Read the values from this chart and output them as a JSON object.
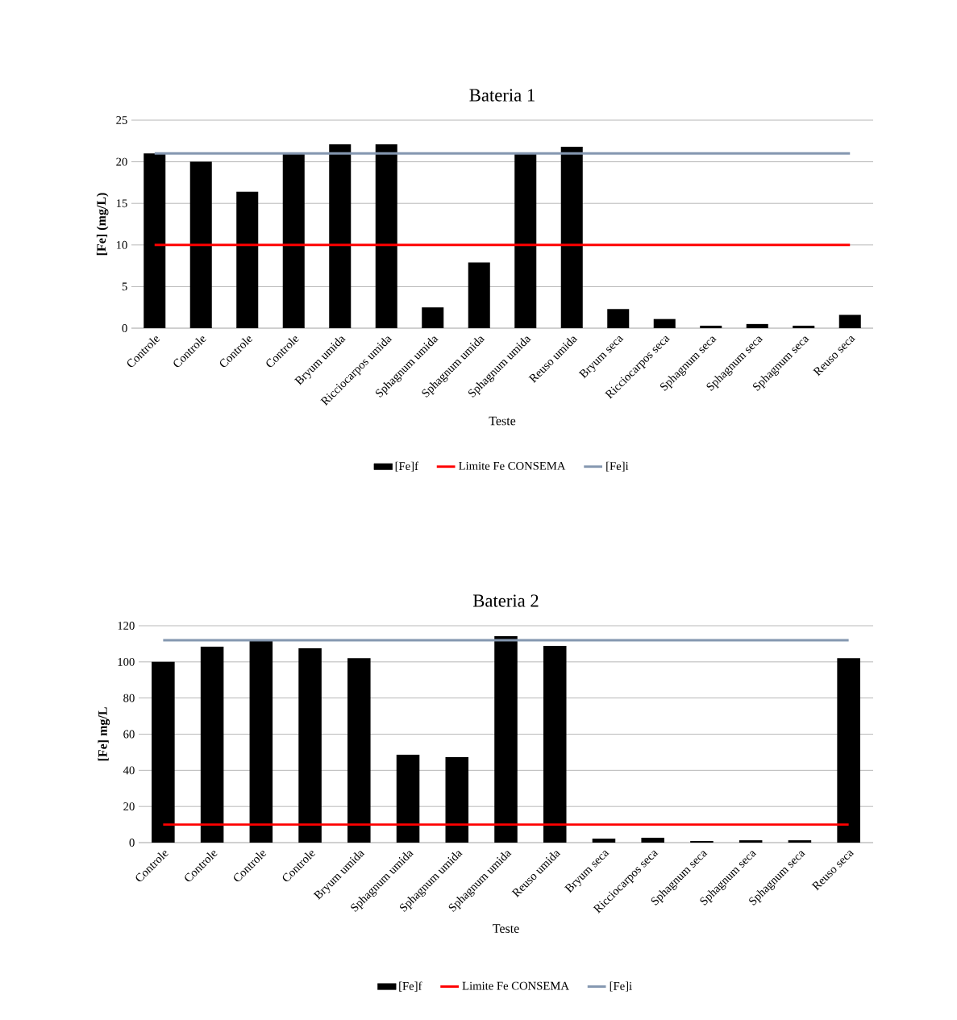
{
  "chart_data": [
    {
      "type": "bar",
      "title": "Bateria 1",
      "xlabel": "Teste",
      "ylabel": "[Fe] (mg/L)",
      "categories": [
        "Controle",
        "Controle",
        "Controle",
        "Controle",
        "Bryum umida",
        "Ricciocarpos umida",
        "Sphagnum umida",
        "Sphagnum umida",
        "Sphagnum umida",
        "Reuso umida",
        "Bryum seca",
        "Ricciocarpos seca",
        "Sphagnum seca",
        "Sphagnum seca",
        "Sphagnum seca",
        "Reuso seca"
      ],
      "series": [
        {
          "name": "[Fe]f",
          "color": "#000000",
          "values": [
            21.0,
            20.0,
            16.4,
            21.0,
            22.1,
            22.1,
            2.5,
            7.9,
            21.0,
            21.8,
            2.3,
            1.1,
            0.3,
            0.5,
            0.3,
            1.6
          ]
        },
        {
          "name": "Limite Fe CONSEMA",
          "type": "line",
          "color": "#ff0000",
          "values": [
            10,
            10,
            10,
            10,
            10,
            10,
            10,
            10,
            10,
            10,
            10,
            10,
            10,
            10,
            10,
            10
          ]
        },
        {
          "name": "[Fe]i",
          "type": "line",
          "color": "#8497b0",
          "values": [
            21.0,
            21.0,
            21.0,
            21.0,
            21.0,
            21.0,
            21.0,
            21.0,
            21.0,
            21.0,
            21.0,
            21.0,
            21.0,
            21.0,
            21.0,
            21.0
          ]
        }
      ],
      "ylim": [
        0,
        25
      ],
      "yticks": [
        0,
        5,
        10,
        15,
        20,
        25
      ],
      "grid": "y",
      "legend": "bottom"
    },
    {
      "type": "bar",
      "title": "Bateria 2",
      "xlabel": "Teste",
      "ylabel": "[Fe] mg/L",
      "categories": [
        "Controle",
        "Controle",
        "Controle",
        "Controle",
        "Bryum umida",
        "Sphagnum umida",
        "Sphagnum umida",
        "Sphagnum umida",
        "Reuso umida",
        "Bryum seca",
        "Ricciocarpos seca",
        "Sphagnum seca",
        "Sphagnum seca",
        "Sphagnum seca",
        "Reuso seca"
      ],
      "series": [
        {
          "name": "[Fe]f",
          "color": "#000000",
          "values": [
            100,
            108.4,
            111.5,
            107.5,
            102.1,
            48.6,
            47.3,
            114.2,
            108.8,
            2.2,
            2.7,
            0.9,
            1.3,
            1.3,
            102.1
          ]
        },
        {
          "name": "Limite Fe CONSEMA",
          "type": "line",
          "color": "#ff0000",
          "values": [
            10,
            10,
            10,
            10,
            10,
            10,
            10,
            10,
            10,
            10,
            10,
            10,
            10,
            10,
            10
          ]
        },
        {
          "name": "[Fe]i",
          "type": "line",
          "color": "#8497b0",
          "values": [
            112,
            112,
            112,
            112,
            112,
            112,
            112,
            112,
            112,
            112,
            112,
            112,
            112,
            112,
            112
          ]
        }
      ],
      "ylim": [
        0,
        120
      ],
      "yticks": [
        0,
        20,
        40,
        60,
        80,
        100,
        120
      ],
      "grid": "y",
      "legend": "bottom"
    }
  ]
}
